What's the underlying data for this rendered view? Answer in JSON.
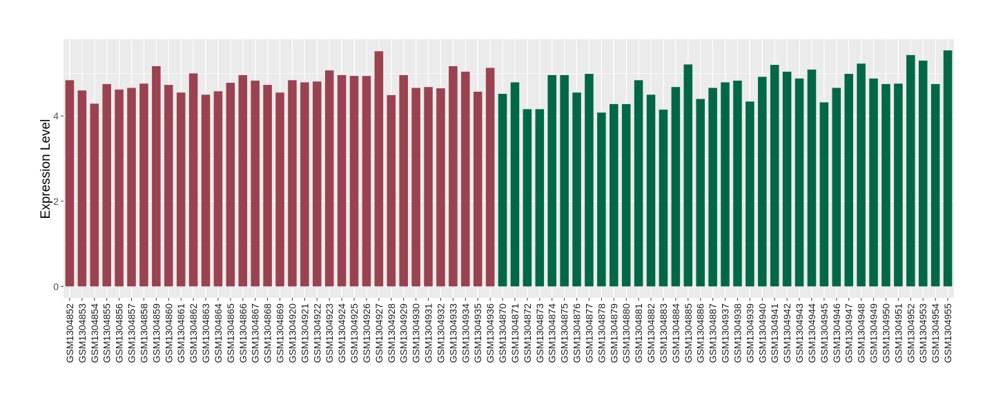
{
  "chart_data": {
    "type": "bar",
    "title": "",
    "xlabel": "",
    "ylabel": "Expression Level",
    "ylim": [
      -0.27,
      5.8
    ],
    "yticks": [
      0,
      2,
      4
    ],
    "grid": true,
    "legend": "none",
    "colors": {
      "group1": "#9A4250",
      "group2": "#006846",
      "panel": "#EBEBEB",
      "grid": "#FFFFFF"
    },
    "categories": [
      "GSM1304852",
      "GSM1304853",
      "GSM1304854",
      "GSM1304855",
      "GSM1304856",
      "GSM1304857",
      "GSM1304858",
      "GSM1304859",
      "GSM1304860",
      "GSM1304861",
      "GSM1304862",
      "GSM1304863",
      "GSM1304864",
      "GSM1304865",
      "GSM1304866",
      "GSM1304867",
      "GSM1304868",
      "GSM1304869",
      "GSM1304920",
      "GSM1304921",
      "GSM1304922",
      "GSM1304923",
      "GSM1304924",
      "GSM1304925",
      "GSM1304926",
      "GSM1304927",
      "GSM1304928",
      "GSM1304929",
      "GSM1304930",
      "GSM1304931",
      "GSM1304932",
      "GSM1304933",
      "GSM1304934",
      "GSM1304935",
      "GSM1304936",
      "GSM1304870",
      "GSM1304871",
      "GSM1304872",
      "GSM1304873",
      "GSM1304874",
      "GSM1304875",
      "GSM1304876",
      "GSM1304877",
      "GSM1304878",
      "GSM1304879",
      "GSM1304880",
      "GSM1304881",
      "GSM1304882",
      "GSM1304883",
      "GSM1304884",
      "GSM1304885",
      "GSM1304886",
      "GSM1304887",
      "GSM1304937",
      "GSM1304938",
      "GSM1304939",
      "GSM1304940",
      "GSM1304941",
      "GSM1304942",
      "GSM1304943",
      "GSM1304944",
      "GSM1304945",
      "GSM1304946",
      "GSM1304947",
      "GSM1304948",
      "GSM1304949",
      "GSM1304950",
      "GSM1304951",
      "GSM1304952",
      "GSM1304953",
      "GSM1304954",
      "GSM1304955"
    ],
    "values": [
      4.84,
      4.6,
      4.29,
      4.75,
      4.62,
      4.66,
      4.76,
      5.17,
      4.73,
      4.55,
      5.0,
      4.5,
      4.58,
      4.78,
      4.96,
      4.83,
      4.73,
      4.55,
      4.84,
      4.79,
      4.81,
      5.07,
      4.96,
      4.94,
      4.94,
      5.52,
      4.49,
      4.96,
      4.66,
      4.68,
      4.65,
      5.17,
      5.04,
      4.57,
      5.13,
      4.52,
      4.79,
      4.16,
      4.16,
      4.96,
      4.96,
      4.55,
      4.99,
      4.08,
      4.28,
      4.28,
      4.84,
      4.5,
      4.15,
      4.68,
      5.21,
      4.4,
      4.66,
      4.79,
      4.83,
      4.34,
      4.92,
      5.2,
      5.04,
      4.88,
      5.09,
      4.32,
      4.66,
      4.99,
      5.23,
      4.88,
      4.75,
      4.76,
      5.43,
      5.3,
      4.75,
      5.54
    ],
    "groups": [
      1,
      1,
      1,
      1,
      1,
      1,
      1,
      1,
      1,
      1,
      1,
      1,
      1,
      1,
      1,
      1,
      1,
      1,
      1,
      1,
      1,
      1,
      1,
      1,
      1,
      1,
      1,
      1,
      1,
      1,
      1,
      1,
      1,
      1,
      1,
      2,
      2,
      2,
      2,
      2,
      2,
      2,
      2,
      2,
      2,
      2,
      2,
      2,
      2,
      2,
      2,
      2,
      2,
      2,
      2,
      2,
      2,
      2,
      2,
      2,
      2,
      2,
      2,
      2,
      2,
      2,
      2,
      2,
      2,
      2,
      2,
      2
    ]
  }
}
